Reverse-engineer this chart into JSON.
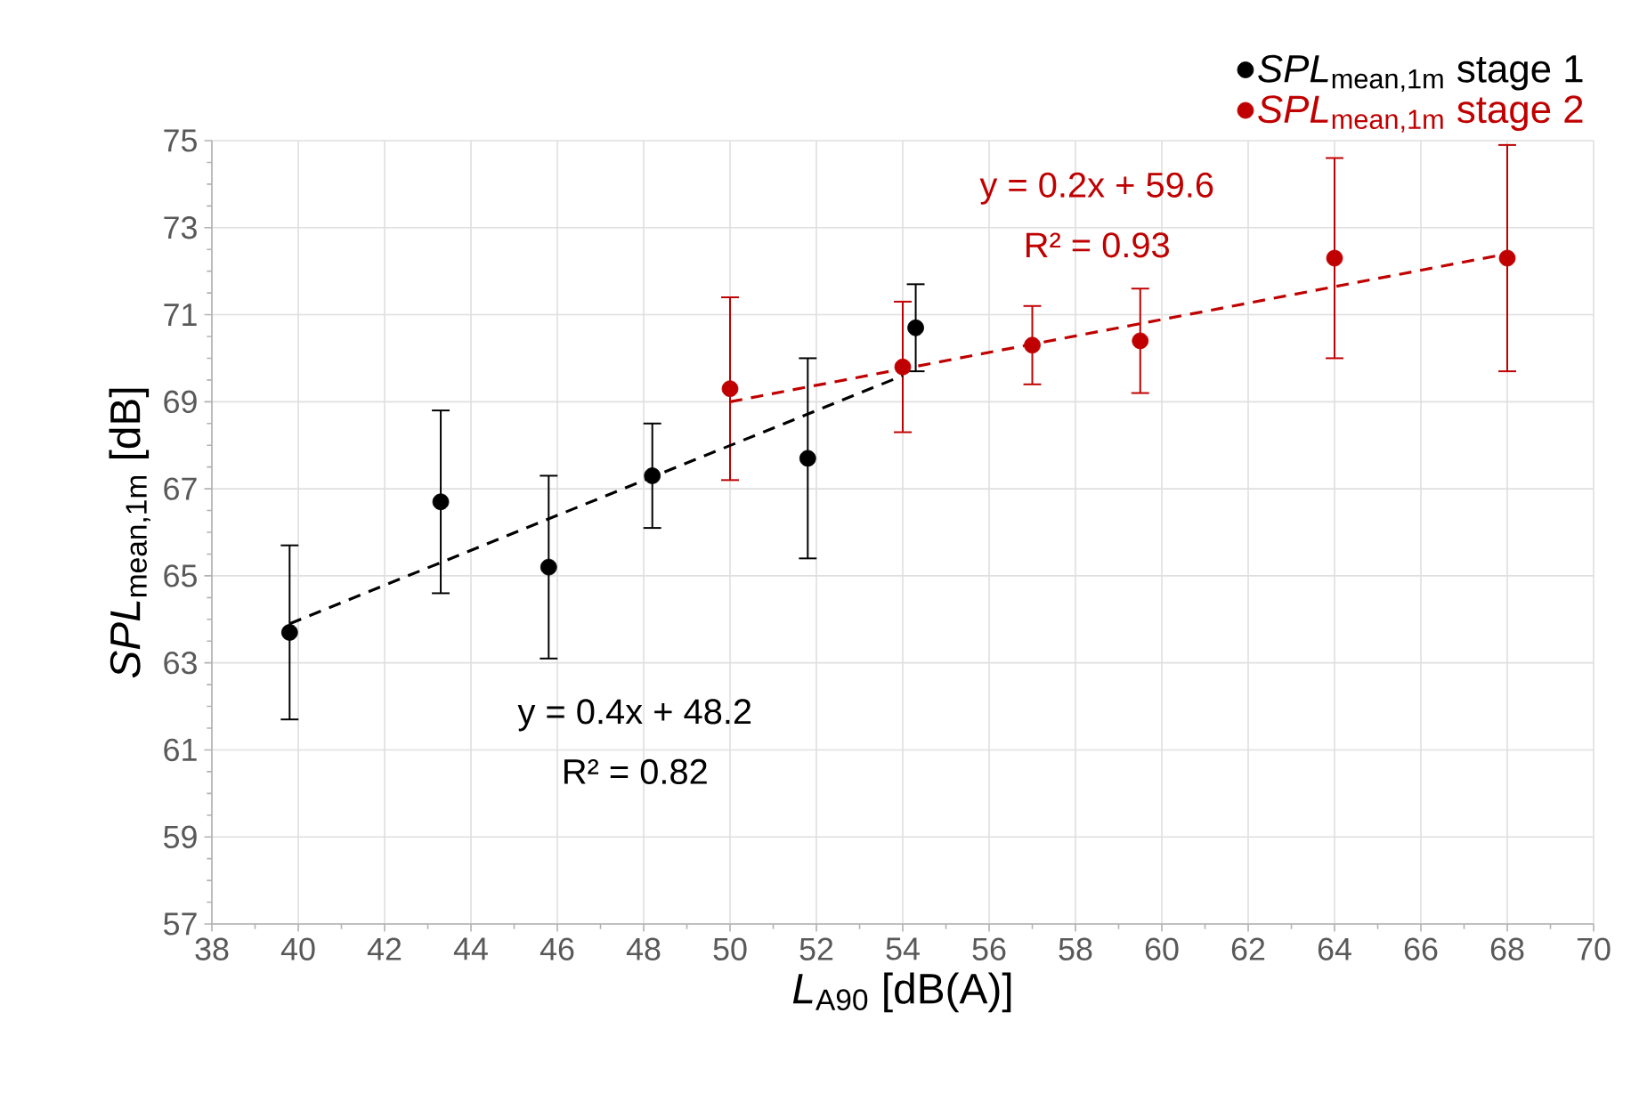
{
  "chart_data": {
    "type": "scatter",
    "xlabel": "*L*$_{A90}$ [dB(A)]",
    "ylabel": "*SPL*$_{mean,1m}$ [dB]",
    "xlim": [
      38,
      70
    ],
    "xticks": [
      38,
      40,
      42,
      44,
      46,
      48,
      50,
      52,
      54,
      56,
      58,
      60,
      62,
      64,
      66,
      68,
      70
    ],
    "ylim": [
      57,
      75
    ],
    "yticks": [
      57,
      59,
      61,
      63,
      65,
      67,
      69,
      71,
      73,
      75
    ],
    "grid": true,
    "legend": "top right",
    "marker": "circle",
    "series": [
      {
        "name": "*SPL*$_{mean,1m}$ stage 1",
        "color": "#000000",
        "x": [
          39.8,
          43.3,
          45.8,
          48.2,
          51.8,
          54.3
        ],
        "values": [
          63.7,
          66.7,
          65.2,
          67.3,
          67.7,
          70.7
        ],
        "errors": [
          2.0,
          2.1,
          2.1,
          1.2,
          2.3,
          1.0
        ]
      },
      {
        "name": "*SPL*$_{mean,1m}$ stage 2",
        "color": "#c00000",
        "x": [
          50.0,
          54.0,
          57.0,
          59.5,
          64.0,
          68.0
        ],
        "values": [
          69.3,
          69.8,
          70.3,
          70.4,
          72.3,
          72.3
        ],
        "errors": [
          2.1,
          1.5,
          0.9,
          1.2,
          2.3,
          2.6
        ]
      },
      {
        "type": "line",
        "marker": "none",
        "line_style": "dashed",
        "color": "#000000",
        "x": [
          39.8,
          54.0
        ],
        "values": [
          63.9,
          69.6
        ]
      },
      {
        "type": "line",
        "marker": "none",
        "line_style": "dashed",
        "color": "#c00000",
        "x": [
          50.0,
          68.0
        ],
        "values": [
          69.0,
          72.4
        ]
      }
    ],
    "annotations": [
      "y = 0.4x + 48.2",
      "R² = 0.82",
      "y = 0.2x + 59.6",
      "R² = 0.93"
    ]
  }
}
